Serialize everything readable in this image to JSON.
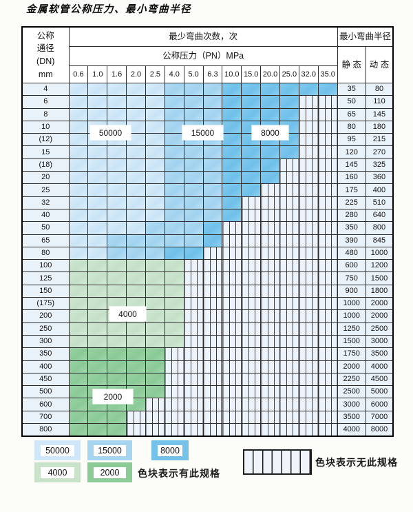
{
  "title": "金属软管公称压力、最小弯曲半径",
  "table": {
    "corner_header_lines": [
      "公称",
      "通径",
      "(DN)",
      "mm"
    ],
    "bend_count_header": "最少弯曲次数，次",
    "pressure_header": "公称压力（PN）MPa",
    "radius_header": "最小弯曲半径",
    "static_label": "静 态",
    "dynamic_label": "动 态",
    "pressure_cols": [
      "0.6",
      "1.0",
      "1.6",
      "2.0",
      "2.5",
      "4.0",
      "5.0",
      "6.3",
      "10.0",
      "15.0",
      "20.0",
      "25.0",
      "32.0",
      "35.0"
    ],
    "shade_legend": {
      "A": "50000",
      "B": "15000",
      "C": "8000",
      "D": "4000",
      "E": "2000",
      "H": "无此规格"
    },
    "rows": [
      {
        "dn": "4",
        "cells": "AAAAABBBCCCCCC",
        "static": "35",
        "dynamic": "80"
      },
      {
        "dn": "6",
        "cells": "AAAAABBBCCCCHH",
        "static": "50",
        "dynamic": "110"
      },
      {
        "dn": "8",
        "cells": "AAAAABBBCCCCHH",
        "static": "65",
        "dynamic": "145"
      },
      {
        "dn": "10",
        "cells": "AAAAABBBCCCCHH",
        "static": "80",
        "dynamic": "180"
      },
      {
        "dn": "(12)",
        "cells": "AAAAABBBCCCCHH",
        "static": "95",
        "dynamic": "215"
      },
      {
        "dn": "15",
        "cells": "AAAAABBBCCCCHH",
        "static": "120",
        "dynamic": "270"
      },
      {
        "dn": "(18)",
        "cells": "AAAAABBBCCCHHH",
        "static": "145",
        "dynamic": "325"
      },
      {
        "dn": "20",
        "cells": "AAAAABBBCCCHHH",
        "static": "160",
        "dynamic": "360"
      },
      {
        "dn": "25",
        "cells": "AAAAABBBCCHHHH",
        "static": "175",
        "dynamic": "400"
      },
      {
        "dn": "32",
        "cells": "AAAAABBBCHHHHH",
        "static": "225",
        "dynamic": "510"
      },
      {
        "dn": "40",
        "cells": "AAAAABBBCHHHHH",
        "static": "280",
        "dynamic": "640"
      },
      {
        "dn": "50",
        "cells": "AAAABBBCHHHHHH",
        "static": "350",
        "dynamic": "800"
      },
      {
        "dn": "65",
        "cells": "AABBBBBCHHHHHH",
        "static": "390",
        "dynamic": "845"
      },
      {
        "dn": "80",
        "cells": "AABBBCCHHHHHHH",
        "static": "480",
        "dynamic": "1000"
      },
      {
        "dn": "100",
        "cells": "DDDDDDHHHHHHHH",
        "static": "600",
        "dynamic": "1200"
      },
      {
        "dn": "125",
        "cells": "DDDDDDHHHHHHHH",
        "static": "750",
        "dynamic": "1500"
      },
      {
        "dn": "150",
        "cells": "DDDDDDHHHHHHHH",
        "static": "900",
        "dynamic": "1800"
      },
      {
        "dn": "(175)",
        "cells": "DDDDDDHHHHHHHH",
        "static": "1000",
        "dynamic": "2000"
      },
      {
        "dn": "200",
        "cells": "DDDDDDHHHHHHHH",
        "static": "1000",
        "dynamic": "2000"
      },
      {
        "dn": "250",
        "cells": "DDDDDDHHHHHHHH",
        "static": "1250",
        "dynamic": "2500"
      },
      {
        "dn": "300",
        "cells": "DDDDDDHHHHHHHH",
        "static": "1500",
        "dynamic": "3000"
      },
      {
        "dn": "350",
        "cells": "EEEEEHHHHHHHHH",
        "static": "1750",
        "dynamic": "3500"
      },
      {
        "dn": "400",
        "cells": "EEEEEHHHHHHHHH",
        "static": "2000",
        "dynamic": "4000"
      },
      {
        "dn": "450",
        "cells": "EEEEEHHHHHHHHH",
        "static": "2250",
        "dynamic": "4500"
      },
      {
        "dn": "500",
        "cells": "EEEEEHHHHHHHHH",
        "static": "2500",
        "dynamic": "5000"
      },
      {
        "dn": "600",
        "cells": "EEEEHHHHHHHHHH",
        "static": "3000",
        "dynamic": "6000"
      },
      {
        "dn": "700",
        "cells": "EEEHHHHHHHHHHH",
        "static": "3500",
        "dynamic": "7000"
      },
      {
        "dn": "800",
        "cells": "EEEHHHHHHHHHHH",
        "static": "4000",
        "dynamic": "8000"
      }
    ]
  },
  "overlay_labels": [
    {
      "text": "50000",
      "cls": "ol-50000"
    },
    {
      "text": "15000",
      "cls": "ol-15000"
    },
    {
      "text": "8000",
      "cls": "ol-8000"
    },
    {
      "text": "4000",
      "cls": "ol-4000"
    },
    {
      "text": "2000",
      "cls": "ol-2000"
    }
  ],
  "legend": {
    "items": [
      {
        "label": "50000",
        "shade": "A",
        "cls": "lg-50000"
      },
      {
        "label": "15000",
        "shade": "B",
        "cls": "lg-15000"
      },
      {
        "label": "8000",
        "shade": "C",
        "cls": "lg-8000"
      },
      {
        "label": "4000",
        "shade": "D",
        "cls": "lg-4000"
      },
      {
        "label": "2000",
        "shade": "E",
        "cls": "lg-2000"
      }
    ],
    "has_spec_note": "色块表示有此规格",
    "no_spec_note": "色块表示无此规格"
  },
  "colors": {
    "shade_A": "#cfe7f8",
    "shade_B": "#a5d5f0",
    "shade_C": "#74c2ea",
    "shade_D": "#c9e3cb",
    "shade_E": "#8ccb98",
    "hatch_bg": "#edf3fa",
    "row_header_bg": "#e9f1f9",
    "grid_line": "#2d2d2d"
  }
}
